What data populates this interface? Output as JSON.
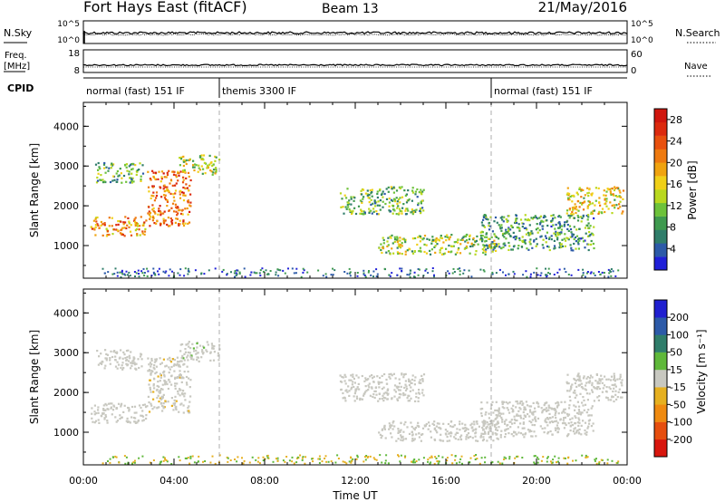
{
  "header": {
    "station": "Fort Hays East (fitACF)",
    "beam": "Beam 13",
    "date": "21/May/2016"
  },
  "left_labels": {
    "nsky": "N.Sky",
    "freq_line1": "Freq.",
    "freq_line2": "[MHz]",
    "cpid": "CPID"
  },
  "right_labels": {
    "nsearch": "N.Search",
    "nave": "Nave"
  },
  "noise_panel": {
    "left_ticks": [
      "10^5",
      "10^0"
    ],
    "right_ticks": [
      "10^5",
      "10^0"
    ]
  },
  "freq_panel": {
    "left_ticks": [
      "18",
      "8"
    ],
    "right_ticks": [
      "60",
      "0"
    ]
  },
  "cpid_segments": [
    {
      "label": "normal (fast) 151 IF",
      "start_hour": 0,
      "end_hour": 6
    },
    {
      "label": "themis 3300 IF",
      "start_hour": 6,
      "end_hour": 18
    },
    {
      "label": "normal (fast) 151 IF",
      "start_hour": 18,
      "end_hour": 24
    }
  ],
  "x_axis": {
    "label": "Time UT",
    "ticks": [
      "00:00",
      "04:00",
      "08:00",
      "12:00",
      "16:00",
      "20:00",
      "00:00"
    ],
    "range_hours": [
      0,
      24
    ]
  },
  "power_colorbar": {
    "label": "Power [dB]",
    "ticks": [
      "4",
      "8",
      "12",
      "16",
      "20",
      "24",
      "28"
    ],
    "colors": [
      "#2020d8",
      "#2c5aa8",
      "#2f7d6a",
      "#3f9a4f",
      "#6dc23a",
      "#b9d81f",
      "#f0d018",
      "#f0a30f",
      "#ee7a10",
      "#e8500e",
      "#dc2a0e",
      "#d0160e"
    ]
  },
  "velocity_colorbar": {
    "label": "Velocity [m s⁻¹]",
    "ticks": [
      "200",
      "100",
      "50",
      "15",
      "-15",
      "-50",
      "-100",
      "-200"
    ],
    "colors": [
      "#2020d0",
      "#2c5aa8",
      "#2f7d6a",
      "#5fb83a",
      "#c8c8c0",
      "#e6b020",
      "#ef8a10",
      "#e64e0e",
      "#d8160e"
    ]
  },
  "chart_data": [
    {
      "type": "heatmap",
      "title": "Power",
      "ylabel": "Slant Range [km]",
      "xlabel": "",
      "ylim": [
        180,
        4600
      ],
      "yticks": [
        1000,
        2000,
        3000,
        4000
      ],
      "x_range_hours": [
        0,
        24
      ],
      "value_label": "Power [dB]",
      "echo_bands": [
        {
          "start_hour": 0.3,
          "end_hour": 2.8,
          "range_km": [
            1250,
            1750
          ],
          "value": 20
        },
        {
          "start_hour": 2.8,
          "end_hour": 4.7,
          "range_km": [
            1500,
            2900
          ],
          "value": 22
        },
        {
          "start_hour": 4.2,
          "end_hour": 6.0,
          "range_km": [
            2800,
            3300
          ],
          "value": 14
        },
        {
          "start_hour": 0.5,
          "end_hour": 2.6,
          "range_km": [
            2600,
            3100
          ],
          "value": 10
        },
        {
          "start_hour": 11.3,
          "end_hour": 15.0,
          "range_km": [
            1800,
            2500
          ],
          "value": 11
        },
        {
          "start_hour": 13.0,
          "end_hour": 18.3,
          "range_km": [
            800,
            1300
          ],
          "value": 13
        },
        {
          "start_hour": 17.5,
          "end_hour": 22.5,
          "range_km": [
            900,
            1800
          ],
          "value": 9
        },
        {
          "start_hour": 21.3,
          "end_hour": 23.8,
          "range_km": [
            1800,
            2500
          ],
          "value": 16
        }
      ]
    },
    {
      "type": "heatmap",
      "title": "Velocity",
      "ylabel": "Slant Range [km]",
      "xlabel": "Time UT",
      "ylim": [
        180,
        4600
      ],
      "yticks": [
        1000,
        2000,
        3000,
        4000
      ],
      "x_range_hours": [
        0,
        24
      ],
      "value_label": "Velocity [m s⁻¹]",
      "echo_bands": [
        {
          "start_hour": 0.3,
          "end_hour": 2.8,
          "range_km": [
            1250,
            1750
          ],
          "value": 0
        },
        {
          "start_hour": 2.8,
          "end_hour": 4.7,
          "range_km": [
            1500,
            2900
          ],
          "value": -10
        },
        {
          "start_hour": 4.2,
          "end_hour": 6.0,
          "range_km": [
            2800,
            3300
          ],
          "value": 5
        },
        {
          "start_hour": 0.5,
          "end_hour": 2.6,
          "range_km": [
            2600,
            3100
          ],
          "value": 0
        },
        {
          "start_hour": 11.3,
          "end_hour": 15.0,
          "range_km": [
            1800,
            2500
          ],
          "value": 0
        },
        {
          "start_hour": 13.0,
          "end_hour": 18.3,
          "range_km": [
            800,
            1300
          ],
          "value": 0
        },
        {
          "start_hour": 17.5,
          "end_hour": 22.5,
          "range_km": [
            900,
            1800
          ],
          "value": 0
        },
        {
          "start_hour": 21.3,
          "end_hour": 23.8,
          "range_km": [
            1800,
            2500
          ],
          "value": 0
        }
      ]
    }
  ]
}
